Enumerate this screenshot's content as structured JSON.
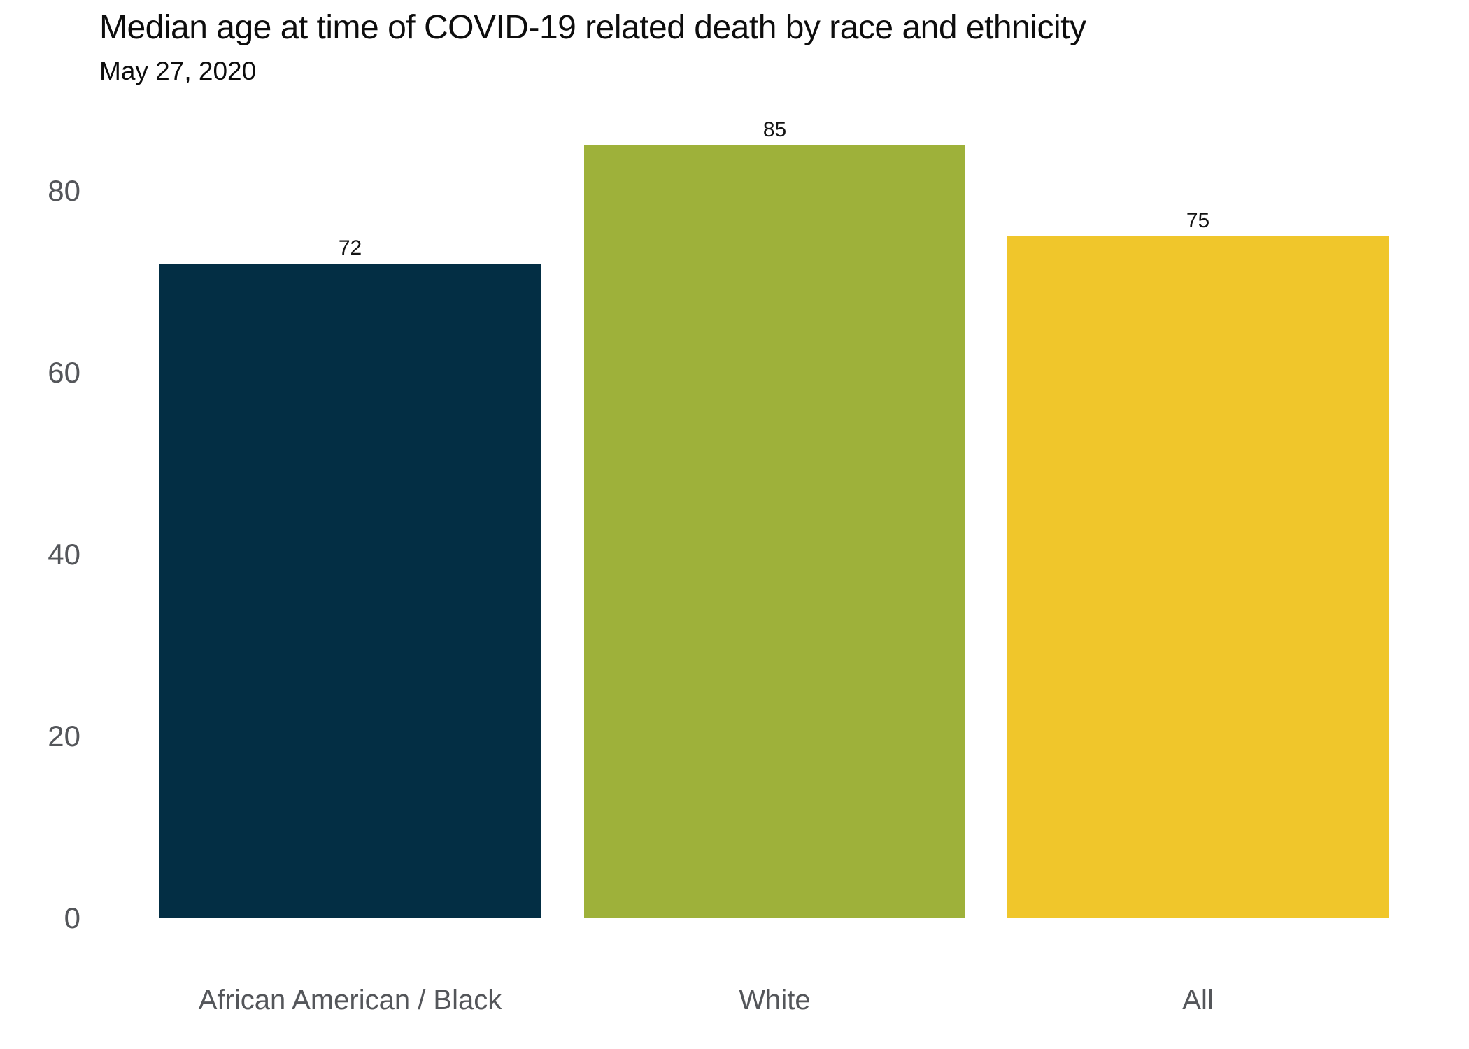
{
  "chart_data": {
    "type": "bar",
    "title": "Median age at time of COVID-19 related death by race and ethnicity",
    "subtitle": "May 27, 2020",
    "categories": [
      "African American / Black",
      "White",
      "All"
    ],
    "values": [
      72,
      85,
      75
    ],
    "value_labels": [
      "72",
      "85",
      "75"
    ],
    "bar_colors": [
      "#032e44",
      "#9eb13a",
      "#f0c62b"
    ],
    "yticks": [
      "0",
      "20",
      "40",
      "60",
      "80"
    ],
    "ytick_values": [
      0,
      20,
      40,
      60,
      80
    ],
    "ylim": [
      0,
      86
    ],
    "xlabel": "",
    "ylabel": "",
    "grid": false,
    "legend": false,
    "colors": {
      "axis_text": "#54565a",
      "value_label_text": "#141414",
      "title_text": "#0d0d0d",
      "background": "#ffffff"
    }
  }
}
